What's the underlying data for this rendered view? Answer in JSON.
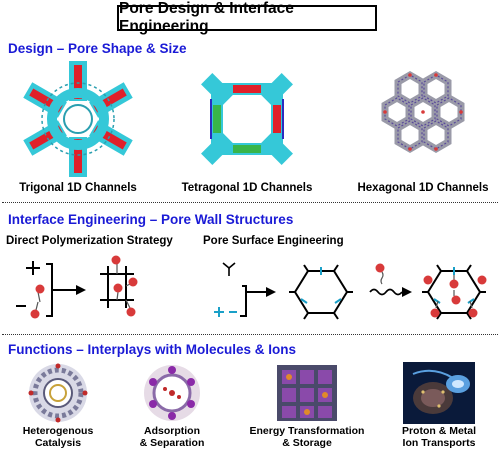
{
  "title": "Pore Design & Interface Engineering",
  "design": {
    "heading": "Design – Pore Shape & Size",
    "channels": [
      {
        "label": "Trigonal 1D Channels"
      },
      {
        "label": "Tetragonal 1D Channels"
      },
      {
        "label": "Hexagonal 1D Channels"
      }
    ]
  },
  "interface": {
    "heading": "Interface Engineering – Pore Wall Structures",
    "direct_label": "Direct Polymerization Strategy",
    "surface_label": "Pore Surface Engineering"
  },
  "functions": {
    "heading": "Functions – Interplays with Molecules & Ions",
    "items": [
      {
        "line1": "Heterogenous",
        "line2": "Catalysis"
      },
      {
        "line1": "Adsorption",
        "line2": "& Separation"
      },
      {
        "line1": "Energy Transformation",
        "line2": "& Storage"
      },
      {
        "line1": "Proton & Metal",
        "line2": "Ion Transports"
      }
    ]
  },
  "colors": {
    "heading_blue": "#1a1ad6",
    "framework_cyan": "#35c8d8",
    "accent_red": "#e0202a",
    "accent_green": "#39b54a",
    "framework_gray": "#9a9aa8",
    "ball_red": "#d83a3a"
  }
}
